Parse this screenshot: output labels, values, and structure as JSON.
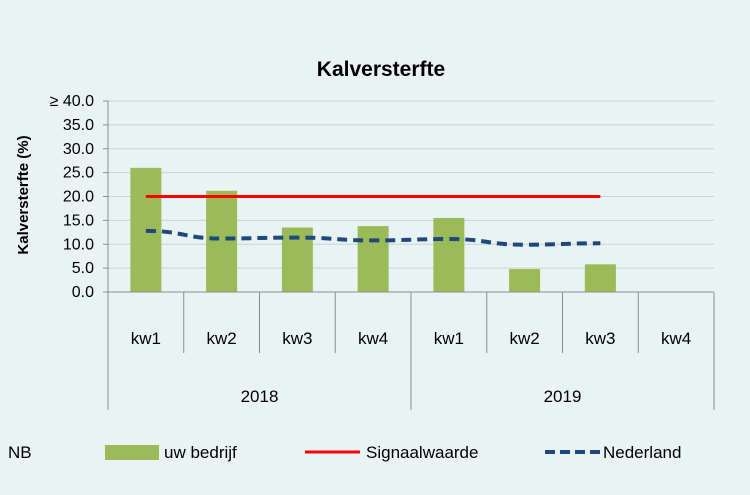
{
  "chart_data": {
    "type": "bar",
    "title": "Kalversterfte",
    "ylabel": "Kalversterfte (%)",
    "ylim": [
      0,
      40
    ],
    "y_ticks": [
      "0.0",
      "5.0",
      "10.0",
      "15.0",
      "20.0",
      "25.0",
      "30.0",
      "35.0",
      "≥ 40.0"
    ],
    "grid": true,
    "categories": [
      "kw1",
      "kw2",
      "kw3",
      "kw4",
      "kw1",
      "kw2",
      "kw3",
      "kw4"
    ],
    "groups": [
      {
        "label": "2018",
        "span": 4
      },
      {
        "label": "2019",
        "span": 4
      }
    ],
    "series": [
      {
        "name": "uw bedrijf",
        "type": "bar",
        "color": "#9bbb59",
        "values": [
          26.0,
          21.2,
          13.5,
          13.8,
          15.5,
          4.8,
          5.8,
          null
        ]
      },
      {
        "name": "Signaalwaarde",
        "type": "line",
        "style": "solid",
        "color": "#ff0000",
        "values": [
          20,
          20,
          20,
          20,
          20,
          20,
          20,
          null
        ]
      },
      {
        "name": "Nederland",
        "type": "line",
        "style": "dashed",
        "color": "#1f497d",
        "values": [
          12.8,
          11.2,
          11.4,
          10.8,
          11.1,
          9.9,
          10.2,
          null
        ]
      }
    ],
    "legend_position": "bottom",
    "legend_prefix": "NB"
  }
}
